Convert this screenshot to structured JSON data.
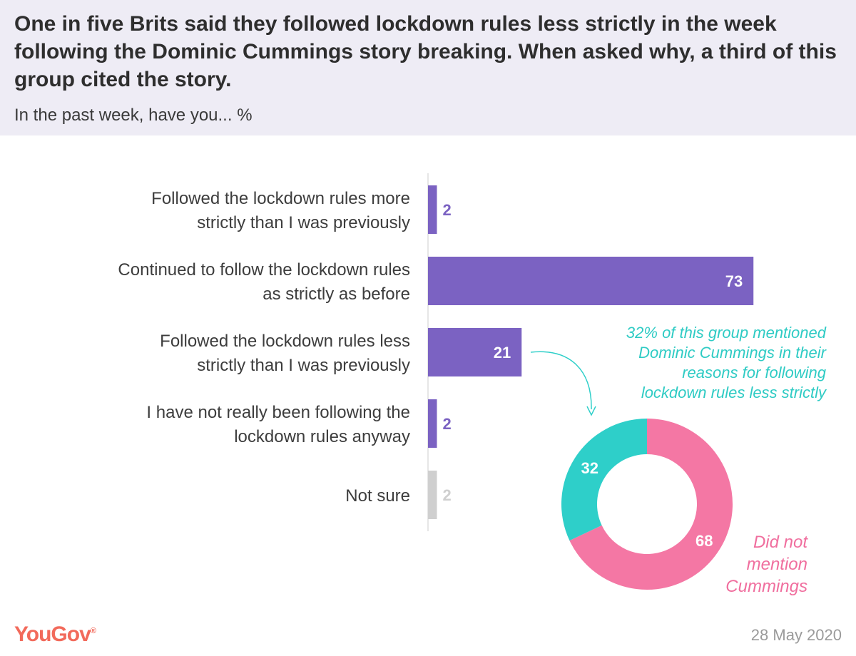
{
  "header": {
    "title": "One in five Brits said they followed lockdown rules less strictly in the week following the Dominic Cummings story breaking. When asked why, a third of this group cited the story.",
    "subtitle": "In the past week, have you... %"
  },
  "chart_data": [
    {
      "type": "bar",
      "orientation": "horizontal",
      "categories": [
        [
          "Followed the lockdown rules more",
          "strictly than I was previously"
        ],
        [
          "Continued to follow the lockdown rules",
          "as strictly as before"
        ],
        [
          "Followed the lockdown rules less",
          "strictly than I was previously"
        ],
        [
          "I have not really been following the",
          "lockdown rules anyway"
        ],
        [
          "Not sure"
        ]
      ],
      "values": [
        2,
        73,
        21,
        2,
        2
      ],
      "colors": [
        "#7b62c2",
        "#7b62c2",
        "#7b62c2",
        "#7b62c2",
        "#cfcfcf"
      ],
      "label_colors": [
        "#7b62c2",
        "#ffffff",
        "#ffffff",
        "#7b62c2",
        "#cfcfcf"
      ],
      "xlim": [
        0,
        100
      ],
      "grid": false
    },
    {
      "type": "pie",
      "donut": true,
      "slices": [
        {
          "name": "Did not mention Cummings",
          "value": 68,
          "color": "#f477a4"
        },
        {
          "name": "",
          "value": 32,
          "color": "#2ecfc9"
        }
      ],
      "annotation": [
        "32% of this group mentioned",
        "Dominic Cummings in their",
        "reasons for following",
        "lockdown rules less strictly"
      ],
      "pink_label": [
        "Did not",
        "mention",
        "Cummings"
      ]
    }
  ],
  "footer": {
    "logo": "YouGov",
    "logo_mark": "®",
    "date": "28 May 2020"
  },
  "colors": {
    "header_bg": "#eeecf5",
    "purple": "#7b62c2",
    "teal": "#2ecfc9",
    "pink": "#f477a4",
    "grey": "#cfcfcf",
    "logo": "#f26a5b"
  }
}
